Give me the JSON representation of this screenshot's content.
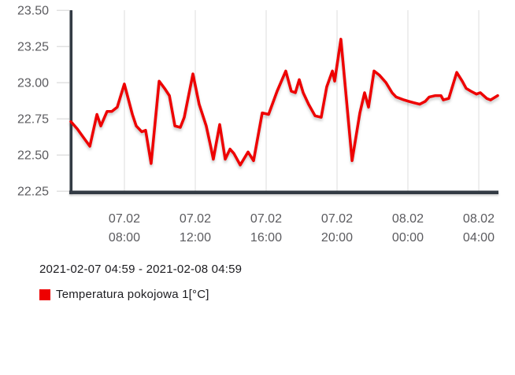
{
  "chart_data": {
    "type": "line",
    "period_label": "2021-02-07 04:59 - 2021-02-08 04:59",
    "legend": [
      {
        "label": "Temperatura pokojowa 1[°C]",
        "color": "#ee0000"
      }
    ],
    "colors": {
      "line": "#ee0000",
      "axis": "#333b44",
      "grid": "#dcdcdc",
      "y_tick": "#e1e1e1",
      "tick_label": "#5b5b5f",
      "text": "#1c1c20",
      "background": "#ffffff"
    },
    "y_axis": {
      "min": 22.25,
      "max": 23.5,
      "tick_step": 0.25,
      "tick_labels": [
        "23.50",
        "23.25",
        "23.00",
        "22.75",
        "22.50",
        "22.25"
      ]
    },
    "x_axis": {
      "start_time": "04:59",
      "end_time": "04:59",
      "hours_span": 24,
      "grid": true,
      "ticks": [
        {
          "date": "07.02",
          "time": "08:00",
          "t": 3.02
        },
        {
          "date": "07.02",
          "time": "12:00",
          "t": 7.02
        },
        {
          "date": "07.02",
          "time": "16:00",
          "t": 11.02
        },
        {
          "date": "07.02",
          "time": "20:00",
          "t": 15.02
        },
        {
          "date": "08.02",
          "time": "00:00",
          "t": 19.02
        },
        {
          "date": "08.02",
          "time": "04:00",
          "t": 23.02
        }
      ]
    },
    "series": [
      {
        "name": "Temperatura pokojowa 1[°C]",
        "color": "#ee0000",
        "points": [
          [
            0.0,
            22.73
          ],
          [
            0.36,
            22.68
          ],
          [
            0.71,
            22.62
          ],
          [
            1.07,
            22.56
          ],
          [
            1.47,
            22.78
          ],
          [
            1.69,
            22.7
          ],
          [
            2.04,
            22.8
          ],
          [
            2.31,
            22.8
          ],
          [
            2.62,
            22.83
          ],
          [
            3.02,
            22.99
          ],
          [
            3.47,
            22.78
          ],
          [
            3.69,
            22.7
          ],
          [
            4.0,
            22.66
          ],
          [
            4.22,
            22.67
          ],
          [
            4.53,
            22.44
          ],
          [
            4.98,
            23.01
          ],
          [
            5.29,
            22.96
          ],
          [
            5.56,
            22.91
          ],
          [
            5.87,
            22.7
          ],
          [
            6.18,
            22.69
          ],
          [
            6.4,
            22.76
          ],
          [
            6.89,
            23.06
          ],
          [
            7.24,
            22.85
          ],
          [
            7.64,
            22.7
          ],
          [
            7.87,
            22.57
          ],
          [
            8.04,
            22.47
          ],
          [
            8.4,
            22.71
          ],
          [
            8.71,
            22.47
          ],
          [
            8.98,
            22.54
          ],
          [
            9.2,
            22.51
          ],
          [
            9.56,
            22.43
          ],
          [
            10.0,
            22.52
          ],
          [
            10.31,
            22.46
          ],
          [
            10.8,
            22.79
          ],
          [
            11.16,
            22.78
          ],
          [
            11.64,
            22.94
          ],
          [
            12.13,
            23.08
          ],
          [
            12.44,
            22.94
          ],
          [
            12.67,
            22.93
          ],
          [
            12.89,
            23.02
          ],
          [
            13.11,
            22.93
          ],
          [
            13.42,
            22.85
          ],
          [
            13.78,
            22.77
          ],
          [
            14.13,
            22.76
          ],
          [
            14.44,
            22.97
          ],
          [
            14.76,
            23.08
          ],
          [
            14.89,
            23.01
          ],
          [
            15.24,
            23.3
          ],
          [
            15.87,
            22.46
          ],
          [
            16.31,
            22.79
          ],
          [
            16.58,
            22.93
          ],
          [
            16.8,
            22.83
          ],
          [
            17.11,
            23.08
          ],
          [
            17.42,
            23.05
          ],
          [
            17.78,
            23.0
          ],
          [
            18.13,
            22.93
          ],
          [
            18.36,
            22.9
          ],
          [
            18.8,
            22.88
          ],
          [
            19.07,
            22.87
          ],
          [
            19.38,
            22.86
          ],
          [
            19.69,
            22.85
          ],
          [
            20.0,
            22.87
          ],
          [
            20.22,
            22.9
          ],
          [
            20.58,
            22.91
          ],
          [
            20.89,
            22.91
          ],
          [
            21.02,
            22.88
          ],
          [
            21.33,
            22.89
          ],
          [
            21.78,
            23.07
          ],
          [
            22.09,
            23.01
          ],
          [
            22.31,
            22.96
          ],
          [
            22.58,
            22.94
          ],
          [
            22.89,
            22.92
          ],
          [
            23.11,
            22.93
          ],
          [
            23.47,
            22.89
          ],
          [
            23.69,
            22.88
          ],
          [
            24.09,
            22.91
          ]
        ]
      }
    ]
  }
}
